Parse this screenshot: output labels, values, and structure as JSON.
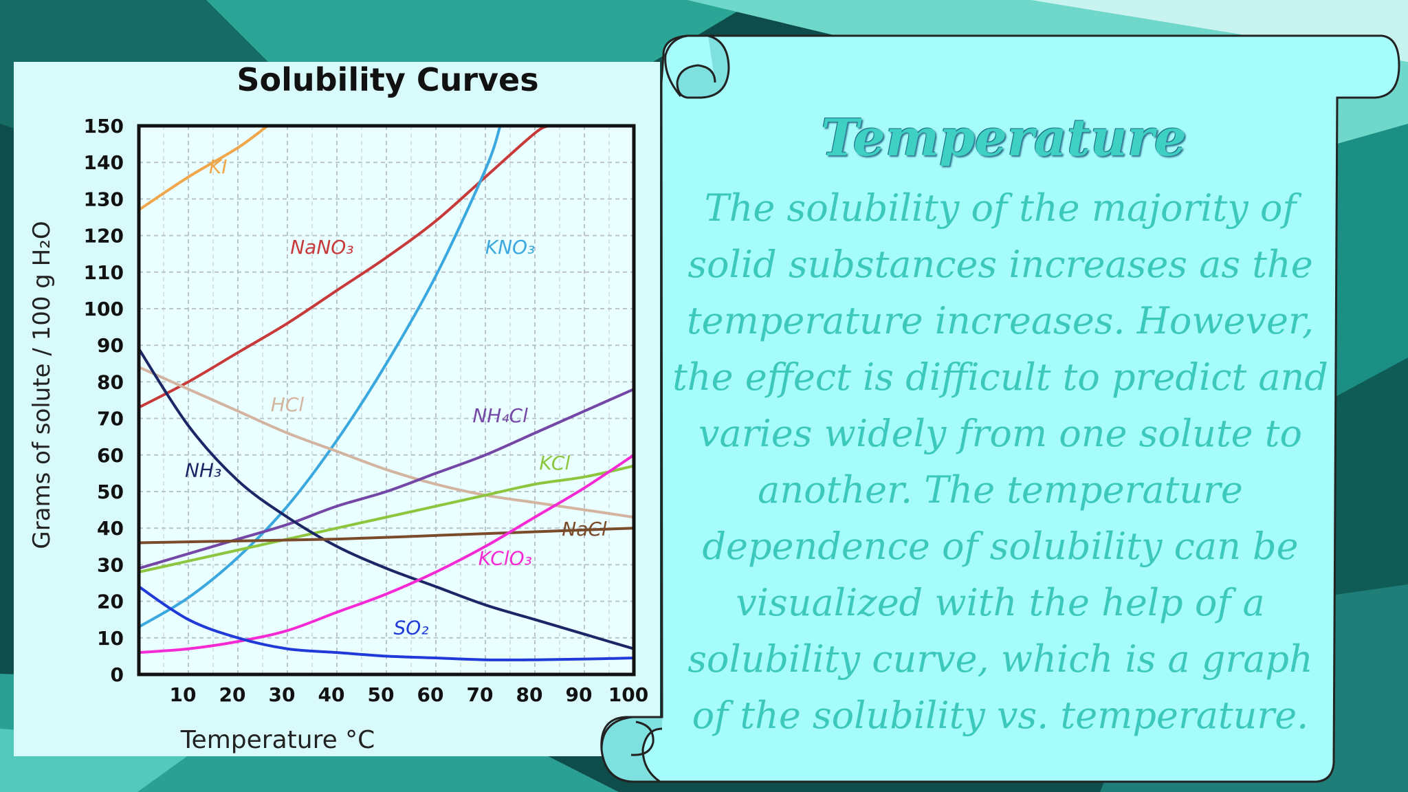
{
  "colors": {
    "bg_dark": "#0e4d4a",
    "bg_teal": "#2cb8a6",
    "scroll_fill": "#a6fcfb",
    "text_teal": "#3cc9bc",
    "chart_bg": "#d9fafa"
  },
  "slide": {
    "title": "Temperature",
    "body": "The solubility of the majority of solid substances increases as the temperature increases. However, the effect is difficult to predict and varies widely from one solute to another. The temperature dependence of solubility can be visualized with the help of a solubility curve, which is a graph of the solubility vs. temperature."
  },
  "chart_data": {
    "type": "line",
    "title": "Solubility Curves",
    "xlabel": "Temperature °C",
    "ylabel": "Grams of solute / 100 g H₂O",
    "xlim": [
      0,
      100
    ],
    "ylim": [
      0,
      150
    ],
    "grid": true,
    "x_ticks": [
      "10",
      "20",
      "30",
      "40",
      "50",
      "60",
      "70",
      "80",
      "90",
      "100"
    ],
    "y_ticks": [
      "0",
      "10",
      "20",
      "30",
      "40",
      "50",
      "60",
      "70",
      "80",
      "90",
      "100",
      "110",
      "120",
      "130",
      "140",
      "150"
    ],
    "series": [
      {
        "name": "KI",
        "color": "#f0a64a",
        "x": [
          0,
          10,
          20,
          26
        ],
        "y": [
          127,
          136,
          144,
          150
        ],
        "label_x": 16,
        "label_y": 137
      },
      {
        "name": "NaNO₃",
        "color": "#c8393a",
        "x": [
          0,
          10,
          20,
          30,
          40,
          50,
          60,
          70,
          80,
          83
        ],
        "y": [
          73,
          80,
          88,
          96,
          105,
          114,
          124,
          136,
          148,
          150
        ],
        "label_x": 37,
        "label_y": 115
      },
      {
        "name": "KNO₃",
        "color": "#3aa8de",
        "x": [
          0,
          10,
          20,
          30,
          40,
          50,
          60,
          70,
          73
        ],
        "y": [
          13,
          21,
          32,
          46,
          64,
          85,
          109,
          138,
          150
        ],
        "label_x": 75,
        "label_y": 115
      },
      {
        "name": "HCl",
        "color": "#d2b4a0",
        "x": [
          0,
          10,
          20,
          30,
          40,
          50,
          60,
          70,
          80,
          90,
          100
        ],
        "y": [
          84,
          78,
          72,
          66,
          61,
          56,
          52,
          49,
          47,
          45,
          43
        ],
        "label_x": 30,
        "label_y": 72
      },
      {
        "name": "NH₄Cl",
        "color": "#7446a6",
        "x": [
          0,
          10,
          20,
          30,
          40,
          50,
          60,
          70,
          80,
          90,
          100
        ],
        "y": [
          29,
          33,
          37,
          41,
          46,
          50,
          55,
          60,
          66,
          72,
          78
        ],
        "label_x": 73,
        "label_y": 69
      },
      {
        "name": "KCl",
        "color": "#8cc63f",
        "x": [
          0,
          10,
          20,
          30,
          40,
          50,
          60,
          70,
          80,
          90,
          100
        ],
        "y": [
          28,
          31,
          34,
          37,
          40,
          43,
          46,
          49,
          52,
          54,
          57
        ],
        "label_x": 84,
        "label_y": 56
      },
      {
        "name": "NH₃",
        "color": "#1c2565",
        "x": [
          0,
          10,
          20,
          30,
          40,
          50,
          60,
          70,
          80,
          90,
          100
        ],
        "y": [
          89,
          68,
          53,
          43,
          35,
          29,
          24,
          19,
          15,
          11,
          7
        ],
        "label_x": 13,
        "label_y": 54
      },
      {
        "name": "NaCl",
        "color": "#7a4b2a",
        "x": [
          0,
          20,
          40,
          60,
          80,
          100
        ],
        "y": [
          36,
          36.5,
          37,
          38,
          39,
          40
        ],
        "label_x": 90,
        "label_y": 38
      },
      {
        "name": "KClO₃",
        "color": "#f52ad4",
        "x": [
          0,
          10,
          20,
          30,
          40,
          50,
          60,
          70,
          80,
          90,
          100
        ],
        "y": [
          6,
          7,
          9,
          12,
          17,
          22,
          28,
          35,
          43,
          51,
          60
        ],
        "label_x": 74,
        "label_y": 30
      },
      {
        "name": "SO₂",
        "color": "#1f3ad8",
        "x": [
          0,
          10,
          20,
          30,
          40,
          50,
          60,
          70,
          80,
          90,
          100
        ],
        "y": [
          24,
          15,
          10,
          7,
          6,
          5,
          4.5,
          4,
          4,
          4.2,
          4.5
        ],
        "label_x": 55,
        "label_y": 11
      }
    ]
  }
}
